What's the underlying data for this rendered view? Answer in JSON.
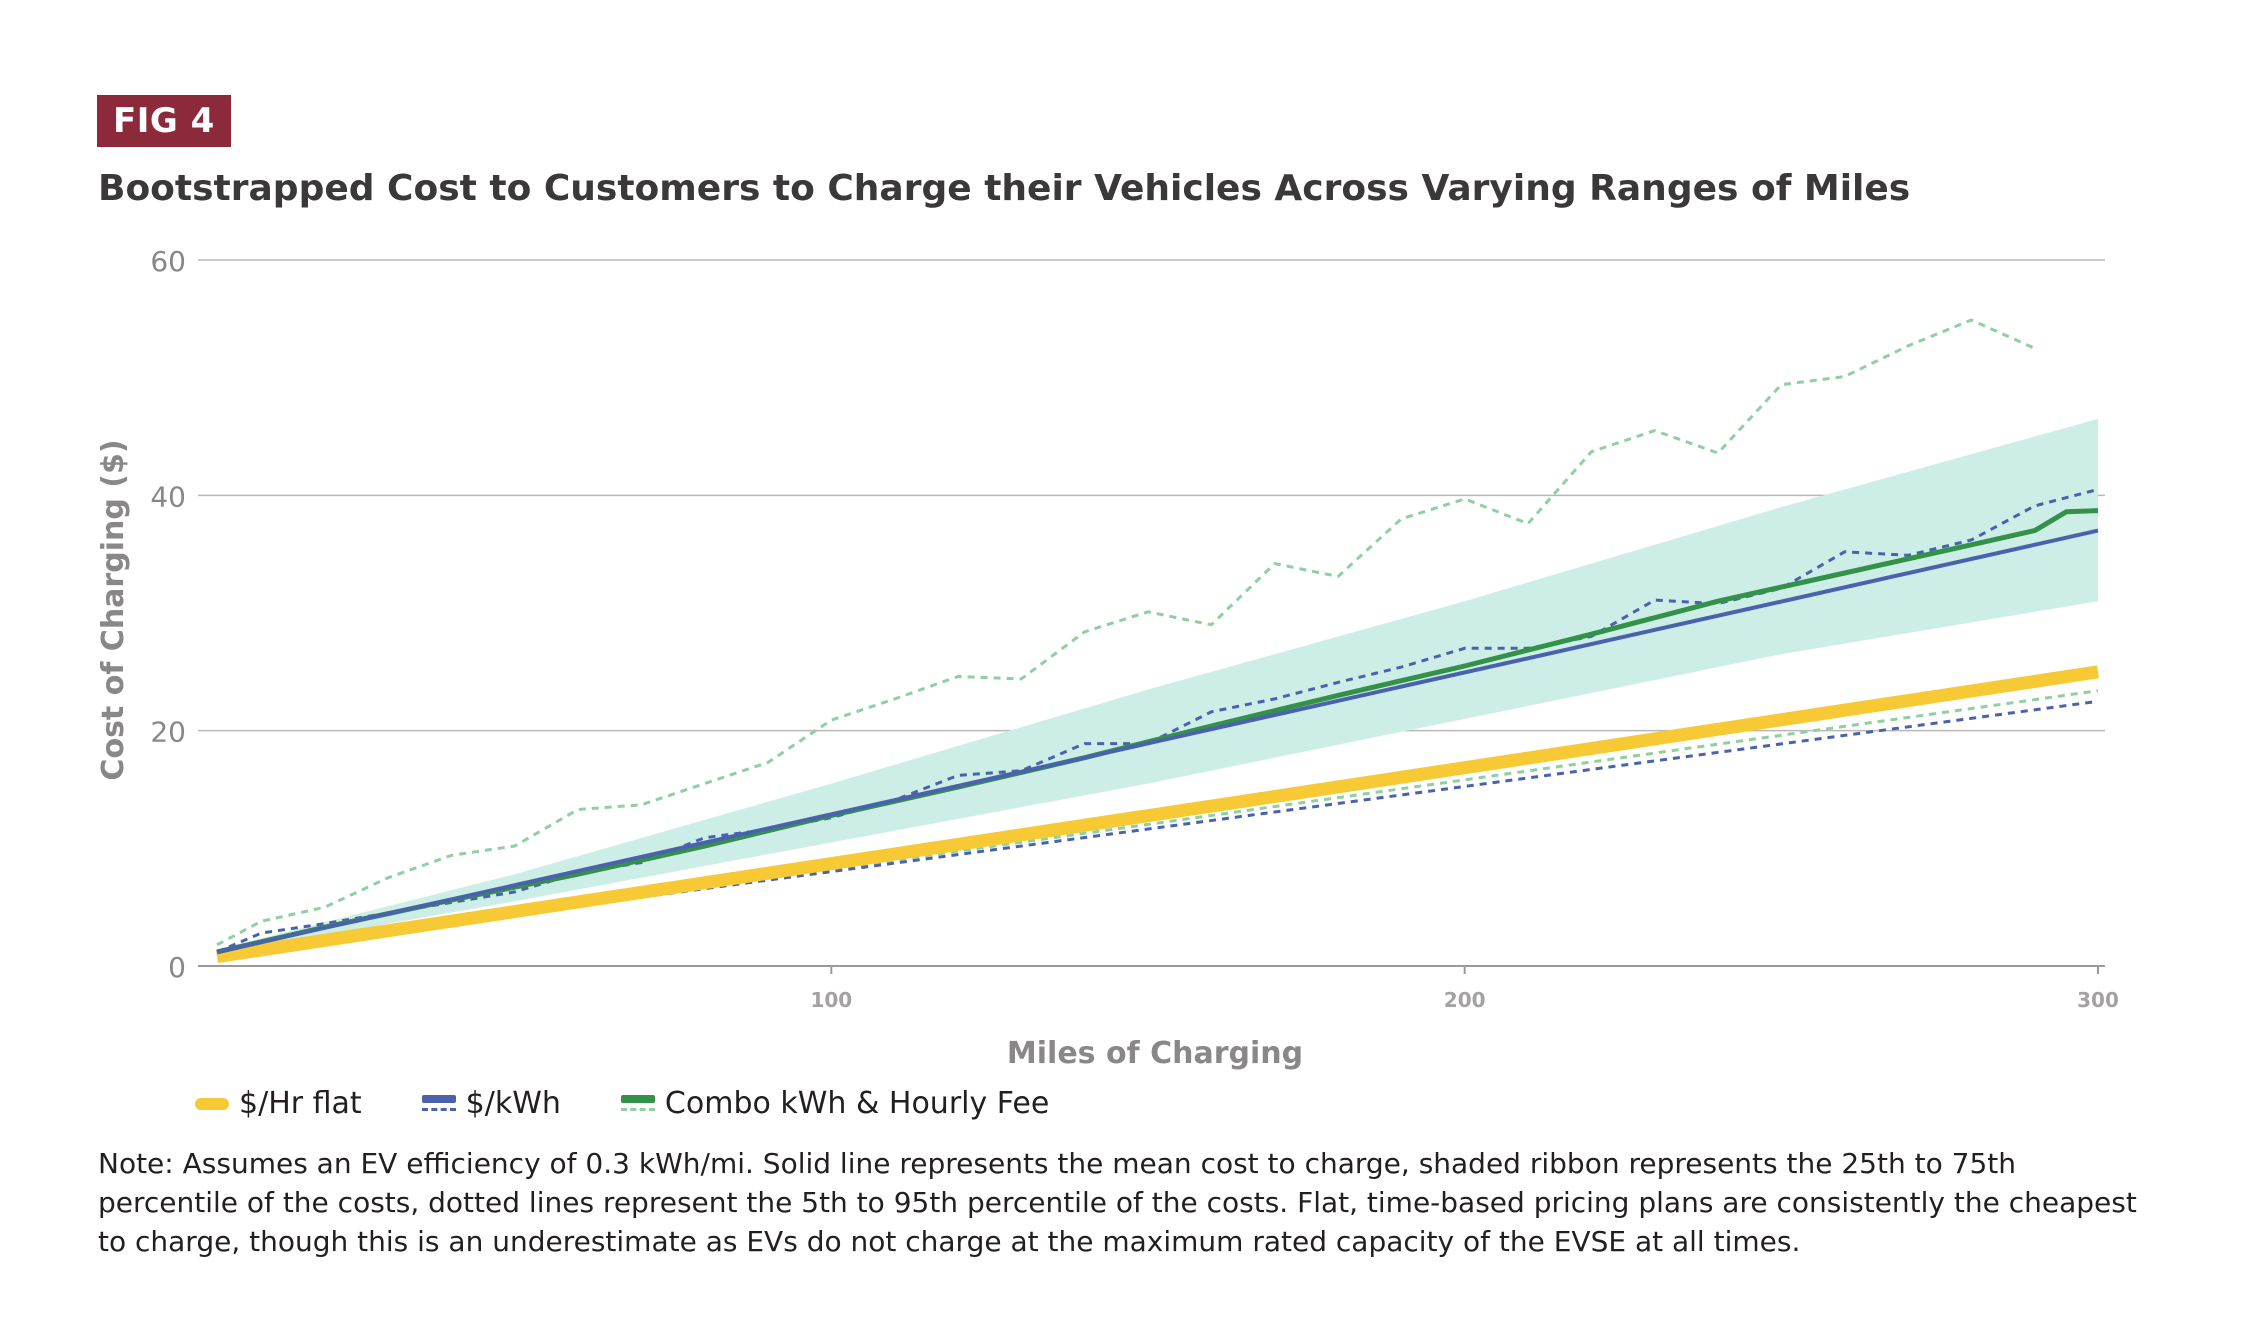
{
  "figure": {
    "badge": "FIG 4",
    "title": "Bootstrapped Cost to Customers to Charge their Vehicles Across Varying Ranges of Miles",
    "note": "Note: Assumes an EV efficiency of 0.3 kWh/mi. Solid line represents the mean cost to charge, shaded ribbon represents the 25th to 75th percentile of the costs, dotted lines represent the 5th to 95th percentile of the costs. Flat, time-based pricing plans are consistently the cheapest to charge, though this is an underestimate as EVs do not charge at the maximum rated capacity of the EVSE at all times."
  },
  "legend": [
    {
      "label": "$/Hr flat",
      "color": "#f6c935",
      "style": "thick-solid"
    },
    {
      "label": "$/kWh",
      "color": "#4a62ad",
      "style": "solid-dashed"
    },
    {
      "label": "Combo kWh & Hourly Fee",
      "color": "#33914a",
      "dash_color": "#8fcfa0",
      "style": "solid-dashed"
    }
  ],
  "chart_data": {
    "type": "line",
    "xlabel": "Miles of Charging",
    "ylabel": "Cost of Charging ($)",
    "xlim": [
      0,
      300
    ],
    "ylim": [
      0,
      60
    ],
    "xticks": [
      100,
      200,
      300
    ],
    "yticks": [
      0,
      20,
      40,
      60
    ],
    "grid": "horizontal",
    "legend_position": "bottom-left",
    "series": [
      {
        "name": "$/Hr flat",
        "color": "#f6c935",
        "x": [
          3,
          300
        ],
        "mean": [
          0.8,
          25.0
        ]
      },
      {
        "name": "$/kWh",
        "color": "#4a62ad",
        "x": [
          3,
          300
        ],
        "mean": [
          1.2,
          37.0
        ],
        "p5": [
          [
            3,
            1.0
          ],
          [
            300,
            22.5
          ]
        ],
        "p95": [
          [
            3,
            1.2
          ],
          [
            10,
            2.8
          ],
          [
            20,
            3.6
          ],
          [
            30,
            4.5
          ],
          [
            40,
            5.4
          ],
          [
            50,
            6.3
          ],
          [
            60,
            7.9
          ],
          [
            70,
            8.8
          ],
          [
            80,
            10.9
          ],
          [
            90,
            11.6
          ],
          [
            100,
            12.6
          ],
          [
            110,
            14.1
          ],
          [
            120,
            16.2
          ],
          [
            130,
            16.6
          ],
          [
            140,
            18.9
          ],
          [
            150,
            18.9
          ],
          [
            160,
            21.6
          ],
          [
            170,
            22.7
          ],
          [
            180,
            24.1
          ],
          [
            190,
            25.4
          ],
          [
            200,
            27.0
          ],
          [
            210,
            27.0
          ],
          [
            220,
            28.0
          ],
          [
            230,
            31.1
          ],
          [
            240,
            30.8
          ],
          [
            250,
            32.1
          ],
          [
            260,
            35.2
          ],
          [
            270,
            34.9
          ],
          [
            280,
            36.2
          ],
          [
            290,
            39.1
          ],
          [
            300,
            40.5
          ]
        ]
      },
      {
        "name": "Combo kWh & Hourly Fee",
        "color": "#33914a",
        "band_color": "#cdeee6",
        "mean": [
          [
            3,
            1.2
          ],
          [
            20,
            3.3
          ],
          [
            40,
            5.6
          ],
          [
            60,
            7.8
          ],
          [
            80,
            10.2
          ],
          [
            100,
            12.8
          ],
          [
            120,
            15.2
          ],
          [
            140,
            17.7
          ],
          [
            160,
            20.4
          ],
          [
            180,
            23.0
          ],
          [
            200,
            25.5
          ],
          [
            220,
            28.2
          ],
          [
            240,
            31.0
          ],
          [
            260,
            33.4
          ],
          [
            280,
            35.8
          ],
          [
            290,
            37.0
          ],
          [
            295,
            38.6
          ],
          [
            300,
            38.7
          ]
        ],
        "p25": [
          [
            3,
            1.0
          ],
          [
            50,
            5.5
          ],
          [
            100,
            10.5
          ],
          [
            150,
            15.5
          ],
          [
            200,
            21.0
          ],
          [
            250,
            26.5
          ],
          [
            300,
            31.0
          ]
        ],
        "p75": [
          [
            3,
            1.4
          ],
          [
            50,
            7.8
          ],
          [
            100,
            15.5
          ],
          [
            150,
            23.5
          ],
          [
            200,
            31.0
          ],
          [
            250,
            39.0
          ],
          [
            300,
            46.5
          ]
        ],
        "p5": [
          [
            3,
            0.9
          ],
          [
            300,
            23.4
          ]
        ],
        "p95": [
          [
            3,
            1.8
          ],
          [
            10,
            3.8
          ],
          [
            20,
            5.0
          ],
          [
            30,
            7.5
          ],
          [
            40,
            9.4
          ],
          [
            50,
            10.2
          ],
          [
            60,
            13.3
          ],
          [
            70,
            13.7
          ],
          [
            80,
            15.5
          ],
          [
            90,
            17.3
          ],
          [
            100,
            20.9
          ],
          [
            110,
            22.7
          ],
          [
            120,
            24.6
          ],
          [
            130,
            24.4
          ],
          [
            140,
            28.4
          ],
          [
            150,
            30.1
          ],
          [
            160,
            29.0
          ],
          [
            170,
            34.2
          ],
          [
            180,
            33.1
          ],
          [
            190,
            38.0
          ],
          [
            200,
            39.7
          ],
          [
            210,
            37.6
          ],
          [
            220,
            43.7
          ],
          [
            230,
            45.5
          ],
          [
            240,
            43.6
          ],
          [
            250,
            49.4
          ],
          [
            260,
            50.1
          ],
          [
            270,
            52.7
          ],
          [
            280,
            54.9
          ],
          [
            290,
            52.5
          ]
        ]
      }
    ]
  }
}
